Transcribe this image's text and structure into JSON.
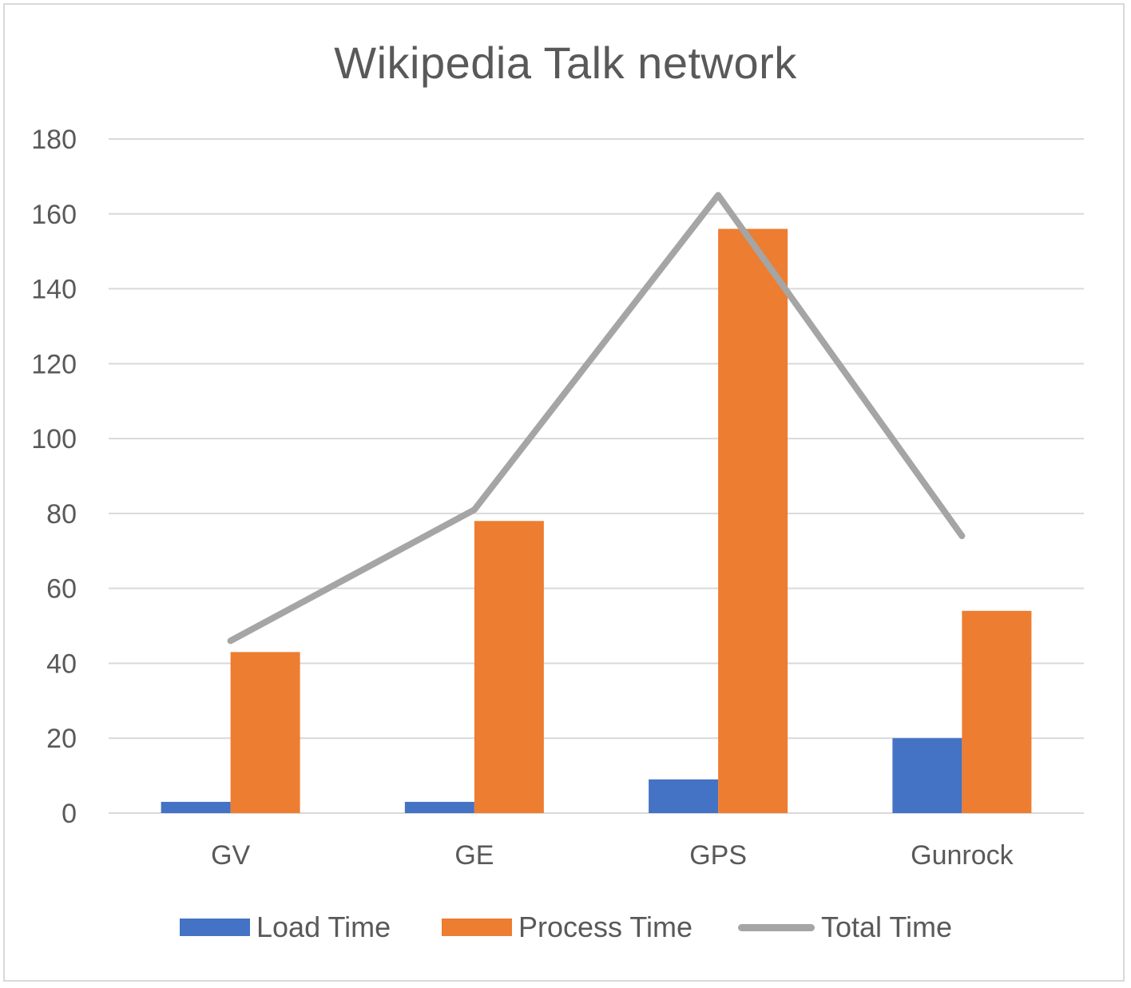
{
  "chart_data": {
    "type": "bar",
    "title": "Wikipedia Talk network",
    "categories": [
      "GV",
      "GE",
      "GPS",
      "Gunrock"
    ],
    "series": [
      {
        "name": "Load Time",
        "kind": "bar",
        "color": "#4472c4",
        "values": [
          3,
          3,
          9,
          20
        ]
      },
      {
        "name": "Process Time",
        "kind": "bar",
        "color": "#ed7d31",
        "values": [
          43,
          78,
          156,
          54
        ]
      },
      {
        "name": "Total Time",
        "kind": "line",
        "color": "#a5a5a5",
        "values": [
          46,
          81,
          165,
          74
        ]
      }
    ],
    "ylim": [
      0,
      180
    ],
    "yticks": [
      "0",
      "20",
      "40",
      "60",
      "80",
      "100",
      "120",
      "140",
      "160",
      "180"
    ],
    "grid": true,
    "legend_position": "bottom"
  }
}
